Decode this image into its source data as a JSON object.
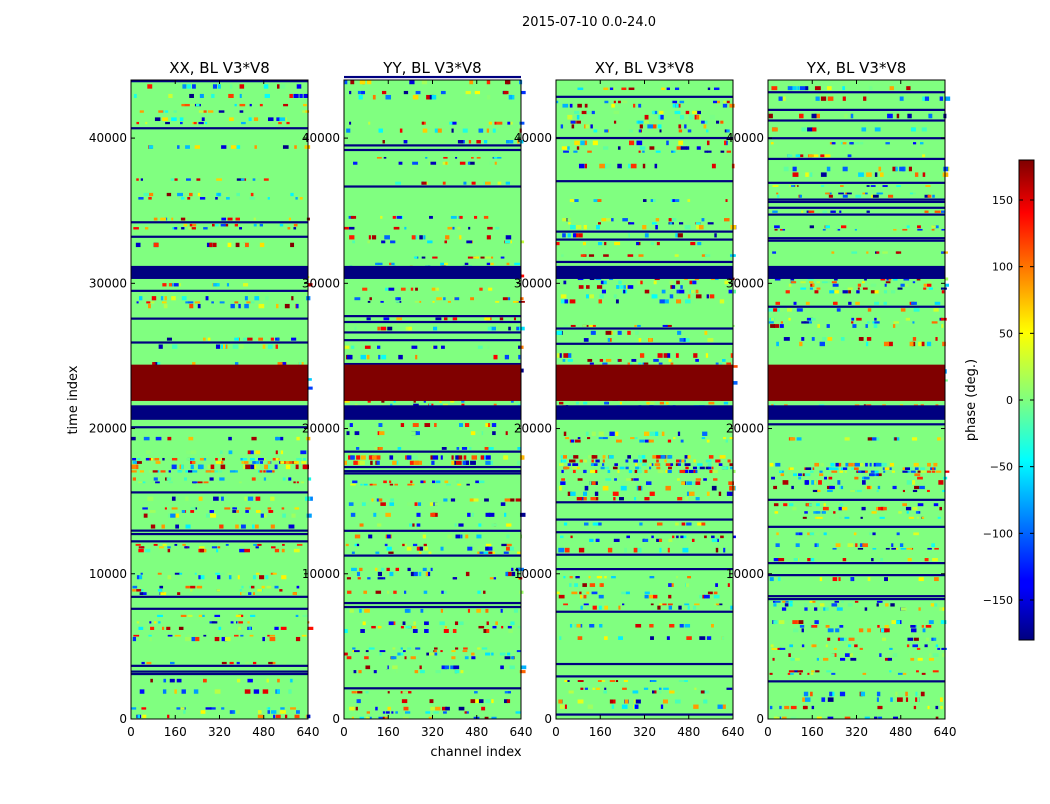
{
  "figure": {
    "suptitle": "2015-07-10 0.0-24.0"
  },
  "chart_data": [
    {
      "type": "heatmap",
      "title": "XX, BL V3*V8",
      "xlabel": "",
      "ylabel": "time index",
      "xlim": [
        0,
        640
      ],
      "ylim": [
        0,
        44000
      ],
      "x_ticks": [
        0,
        160,
        320,
        480,
        640
      ],
      "y_ticks": [
        0,
        10000,
        20000,
        30000,
        40000
      ],
      "color_range": [
        -180,
        180
      ]
    },
    {
      "type": "heatmap",
      "title": "YY, BL V3*V8",
      "xlabel": "channel index",
      "ylabel": "",
      "xlim": [
        0,
        640
      ],
      "ylim": [
        0,
        44000
      ],
      "x_ticks": [
        0,
        160,
        320,
        480,
        640
      ],
      "y_ticks": [
        0,
        10000,
        20000,
        30000,
        40000
      ],
      "color_range": [
        -180,
        180
      ]
    },
    {
      "type": "heatmap",
      "title": "XY, BL V3*V8",
      "xlabel": "",
      "ylabel": "",
      "xlim": [
        0,
        640
      ],
      "ylim": [
        0,
        44000
      ],
      "x_ticks": [
        0,
        160,
        320,
        480,
        640
      ],
      "y_ticks": [
        0,
        10000,
        20000,
        30000,
        40000
      ],
      "color_range": [
        -180,
        180
      ]
    },
    {
      "type": "heatmap",
      "title": "YX, BL V3*V8",
      "xlabel": "",
      "ylabel": "",
      "xlim": [
        0,
        640
      ],
      "ylim": [
        0,
        44000
      ],
      "x_ticks": [
        0,
        160,
        320,
        480,
        640
      ],
      "y_ticks": [
        0,
        10000,
        20000,
        30000,
        40000
      ],
      "color_range": [
        -180,
        180
      ]
    }
  ],
  "colorbar": {
    "label": "phase (deg.)",
    "colormap": "jet",
    "range": [
      -180,
      180
    ],
    "ticks": [
      150,
      100,
      50,
      0,
      -50,
      -100,
      -150
    ],
    "tick_labels": [
      "150",
      "100",
      "50",
      "0",
      "−50",
      "−100",
      "−150"
    ]
  },
  "features": {
    "common_value": 0,
    "saturated_band": {
      "from": 21900,
      "to": 24400,
      "value": 180
    },
    "blue_bands": [
      {
        "from": 30300,
        "to": 31200,
        "value": -180
      },
      {
        "from": 20600,
        "to": 21600,
        "value": -180
      }
    ],
    "noisy_band": {
      "from": 16800,
      "to": 17900
    }
  },
  "colors": {
    "background_value_color": "#7fff7f",
    "saturated_color": "#800000",
    "blue_band_color": "#000080"
  }
}
